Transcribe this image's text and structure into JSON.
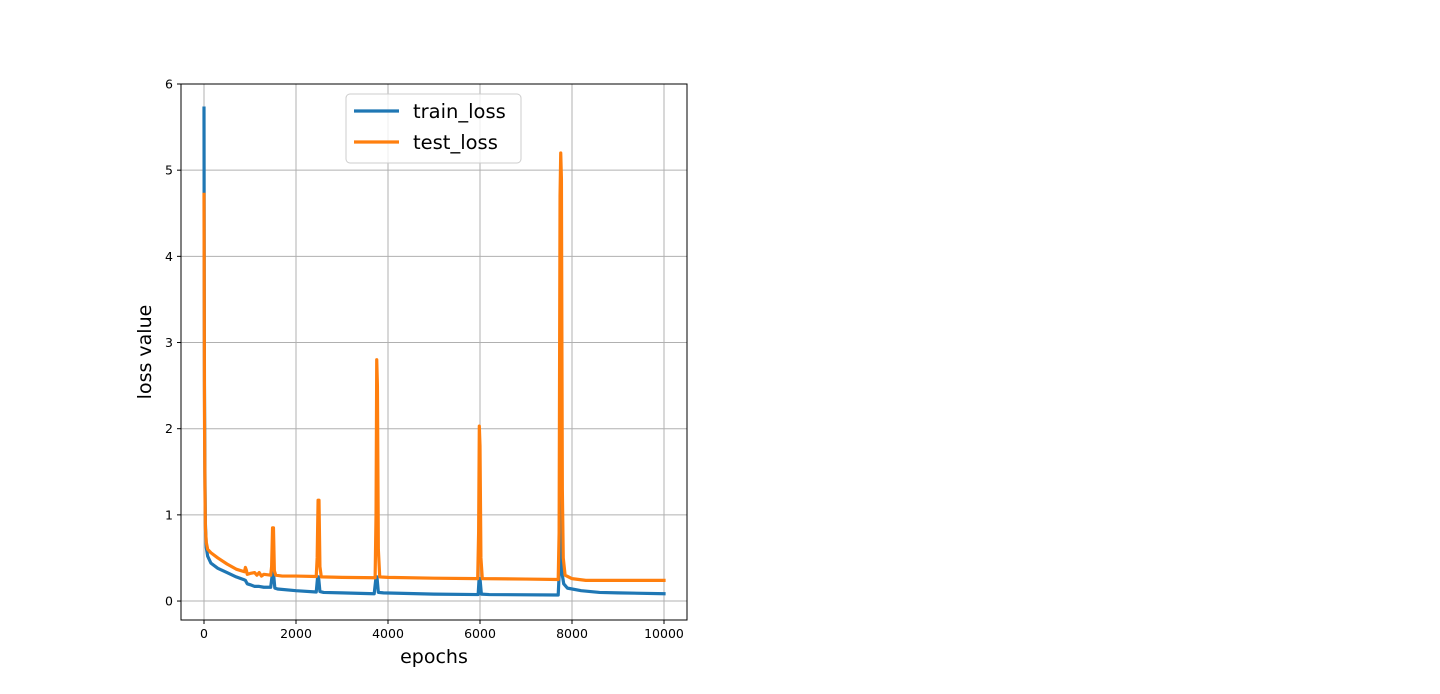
{
  "chart_data": {
    "type": "line",
    "xlabel": "epochs",
    "ylabel": "loss value",
    "xlim": [
      -500,
      10500
    ],
    "ylim": [
      -0.22,
      6.0
    ],
    "xticks": [
      0,
      2000,
      4000,
      6000,
      8000,
      10000
    ],
    "yticks": [
      0,
      1,
      2,
      3,
      4,
      5,
      6
    ],
    "grid": true,
    "legend_position": "upper center",
    "series": [
      {
        "name": "train_loss",
        "color": "#1f77b4",
        "points": [
          [
            0,
            5.72
          ],
          [
            5,
            3.8
          ],
          [
            10,
            2.5
          ],
          [
            20,
            1.5
          ],
          [
            30,
            0.9
          ],
          [
            50,
            0.62
          ],
          [
            80,
            0.52
          ],
          [
            150,
            0.44
          ],
          [
            300,
            0.38
          ],
          [
            500,
            0.33
          ],
          [
            700,
            0.28
          ],
          [
            880,
            0.245
          ],
          [
            900,
            0.24
          ],
          [
            920,
            0.22
          ],
          [
            940,
            0.2
          ],
          [
            1000,
            0.19
          ],
          [
            1100,
            0.17
          ],
          [
            1200,
            0.17
          ],
          [
            1300,
            0.16
          ],
          [
            1450,
            0.16
          ],
          [
            1490,
            0.33
          ],
          [
            1510,
            0.33
          ],
          [
            1540,
            0.15
          ],
          [
            1600,
            0.14
          ],
          [
            2000,
            0.12
          ],
          [
            2440,
            0.105
          ],
          [
            2470,
            0.28
          ],
          [
            2490,
            0.28
          ],
          [
            2520,
            0.11
          ],
          [
            2600,
            0.1
          ],
          [
            3000,
            0.095
          ],
          [
            3700,
            0.085
          ],
          [
            3740,
            0.28
          ],
          [
            3760,
            0.28
          ],
          [
            3790,
            0.1
          ],
          [
            3900,
            0.095
          ],
          [
            5000,
            0.08
          ],
          [
            5960,
            0.075
          ],
          [
            5980,
            0.26
          ],
          [
            6000,
            0.26
          ],
          [
            6030,
            0.08
          ],
          [
            6200,
            0.075
          ],
          [
            7700,
            0.07
          ],
          [
            7720,
            0.3
          ],
          [
            7740,
            1.9
          ],
          [
            7755,
            5.05
          ],
          [
            7770,
            2.3
          ],
          [
            7790,
            0.3
          ],
          [
            7820,
            0.2
          ],
          [
            7900,
            0.15
          ],
          [
            8200,
            0.12
          ],
          [
            8600,
            0.1
          ],
          [
            9000,
            0.095
          ],
          [
            10000,
            0.085
          ]
        ]
      },
      {
        "name": "test_loss",
        "color": "#ff7f0e",
        "points": [
          [
            0,
            4.72
          ],
          [
            5,
            3.5
          ],
          [
            10,
            2.2
          ],
          [
            20,
            1.3
          ],
          [
            30,
            0.85
          ],
          [
            50,
            0.68
          ],
          [
            80,
            0.6
          ],
          [
            150,
            0.56
          ],
          [
            300,
            0.5
          ],
          [
            500,
            0.43
          ],
          [
            700,
            0.37
          ],
          [
            880,
            0.34
          ],
          [
            900,
            0.39
          ],
          [
            920,
            0.36
          ],
          [
            940,
            0.31
          ],
          [
            1000,
            0.32
          ],
          [
            1100,
            0.33
          ],
          [
            1150,
            0.3
          ],
          [
            1200,
            0.33
          ],
          [
            1250,
            0.29
          ],
          [
            1300,
            0.31
          ],
          [
            1450,
            0.3
          ],
          [
            1470,
            0.4
          ],
          [
            1490,
            0.85
          ],
          [
            1510,
            0.85
          ],
          [
            1530,
            0.35
          ],
          [
            1560,
            0.3
          ],
          [
            1700,
            0.29
          ],
          [
            2000,
            0.29
          ],
          [
            2440,
            0.285
          ],
          [
            2460,
            0.5
          ],
          [
            2480,
            1.17
          ],
          [
            2500,
            1.17
          ],
          [
            2520,
            0.4
          ],
          [
            2550,
            0.28
          ],
          [
            3000,
            0.275
          ],
          [
            3720,
            0.27
          ],
          [
            3740,
            1.0
          ],
          [
            3755,
            2.8
          ],
          [
            3770,
            2.5
          ],
          [
            3790,
            0.6
          ],
          [
            3820,
            0.28
          ],
          [
            4000,
            0.275
          ],
          [
            5000,
            0.265
          ],
          [
            5950,
            0.26
          ],
          [
            5970,
            0.8
          ],
          [
            5985,
            2.03
          ],
          [
            6000,
            1.8
          ],
          [
            6020,
            0.5
          ],
          [
            6050,
            0.26
          ],
          [
            7000,
            0.255
          ],
          [
            7700,
            0.25
          ],
          [
            7720,
            0.8
          ],
          [
            7740,
            4.7
          ],
          [
            7755,
            5.2
          ],
          [
            7770,
            4.9
          ],
          [
            7790,
            1.3
          ],
          [
            7810,
            0.5
          ],
          [
            7850,
            0.3
          ],
          [
            8000,
            0.26
          ],
          [
            8300,
            0.24
          ],
          [
            9000,
            0.24
          ],
          [
            10000,
            0.24
          ]
        ]
      }
    ]
  }
}
